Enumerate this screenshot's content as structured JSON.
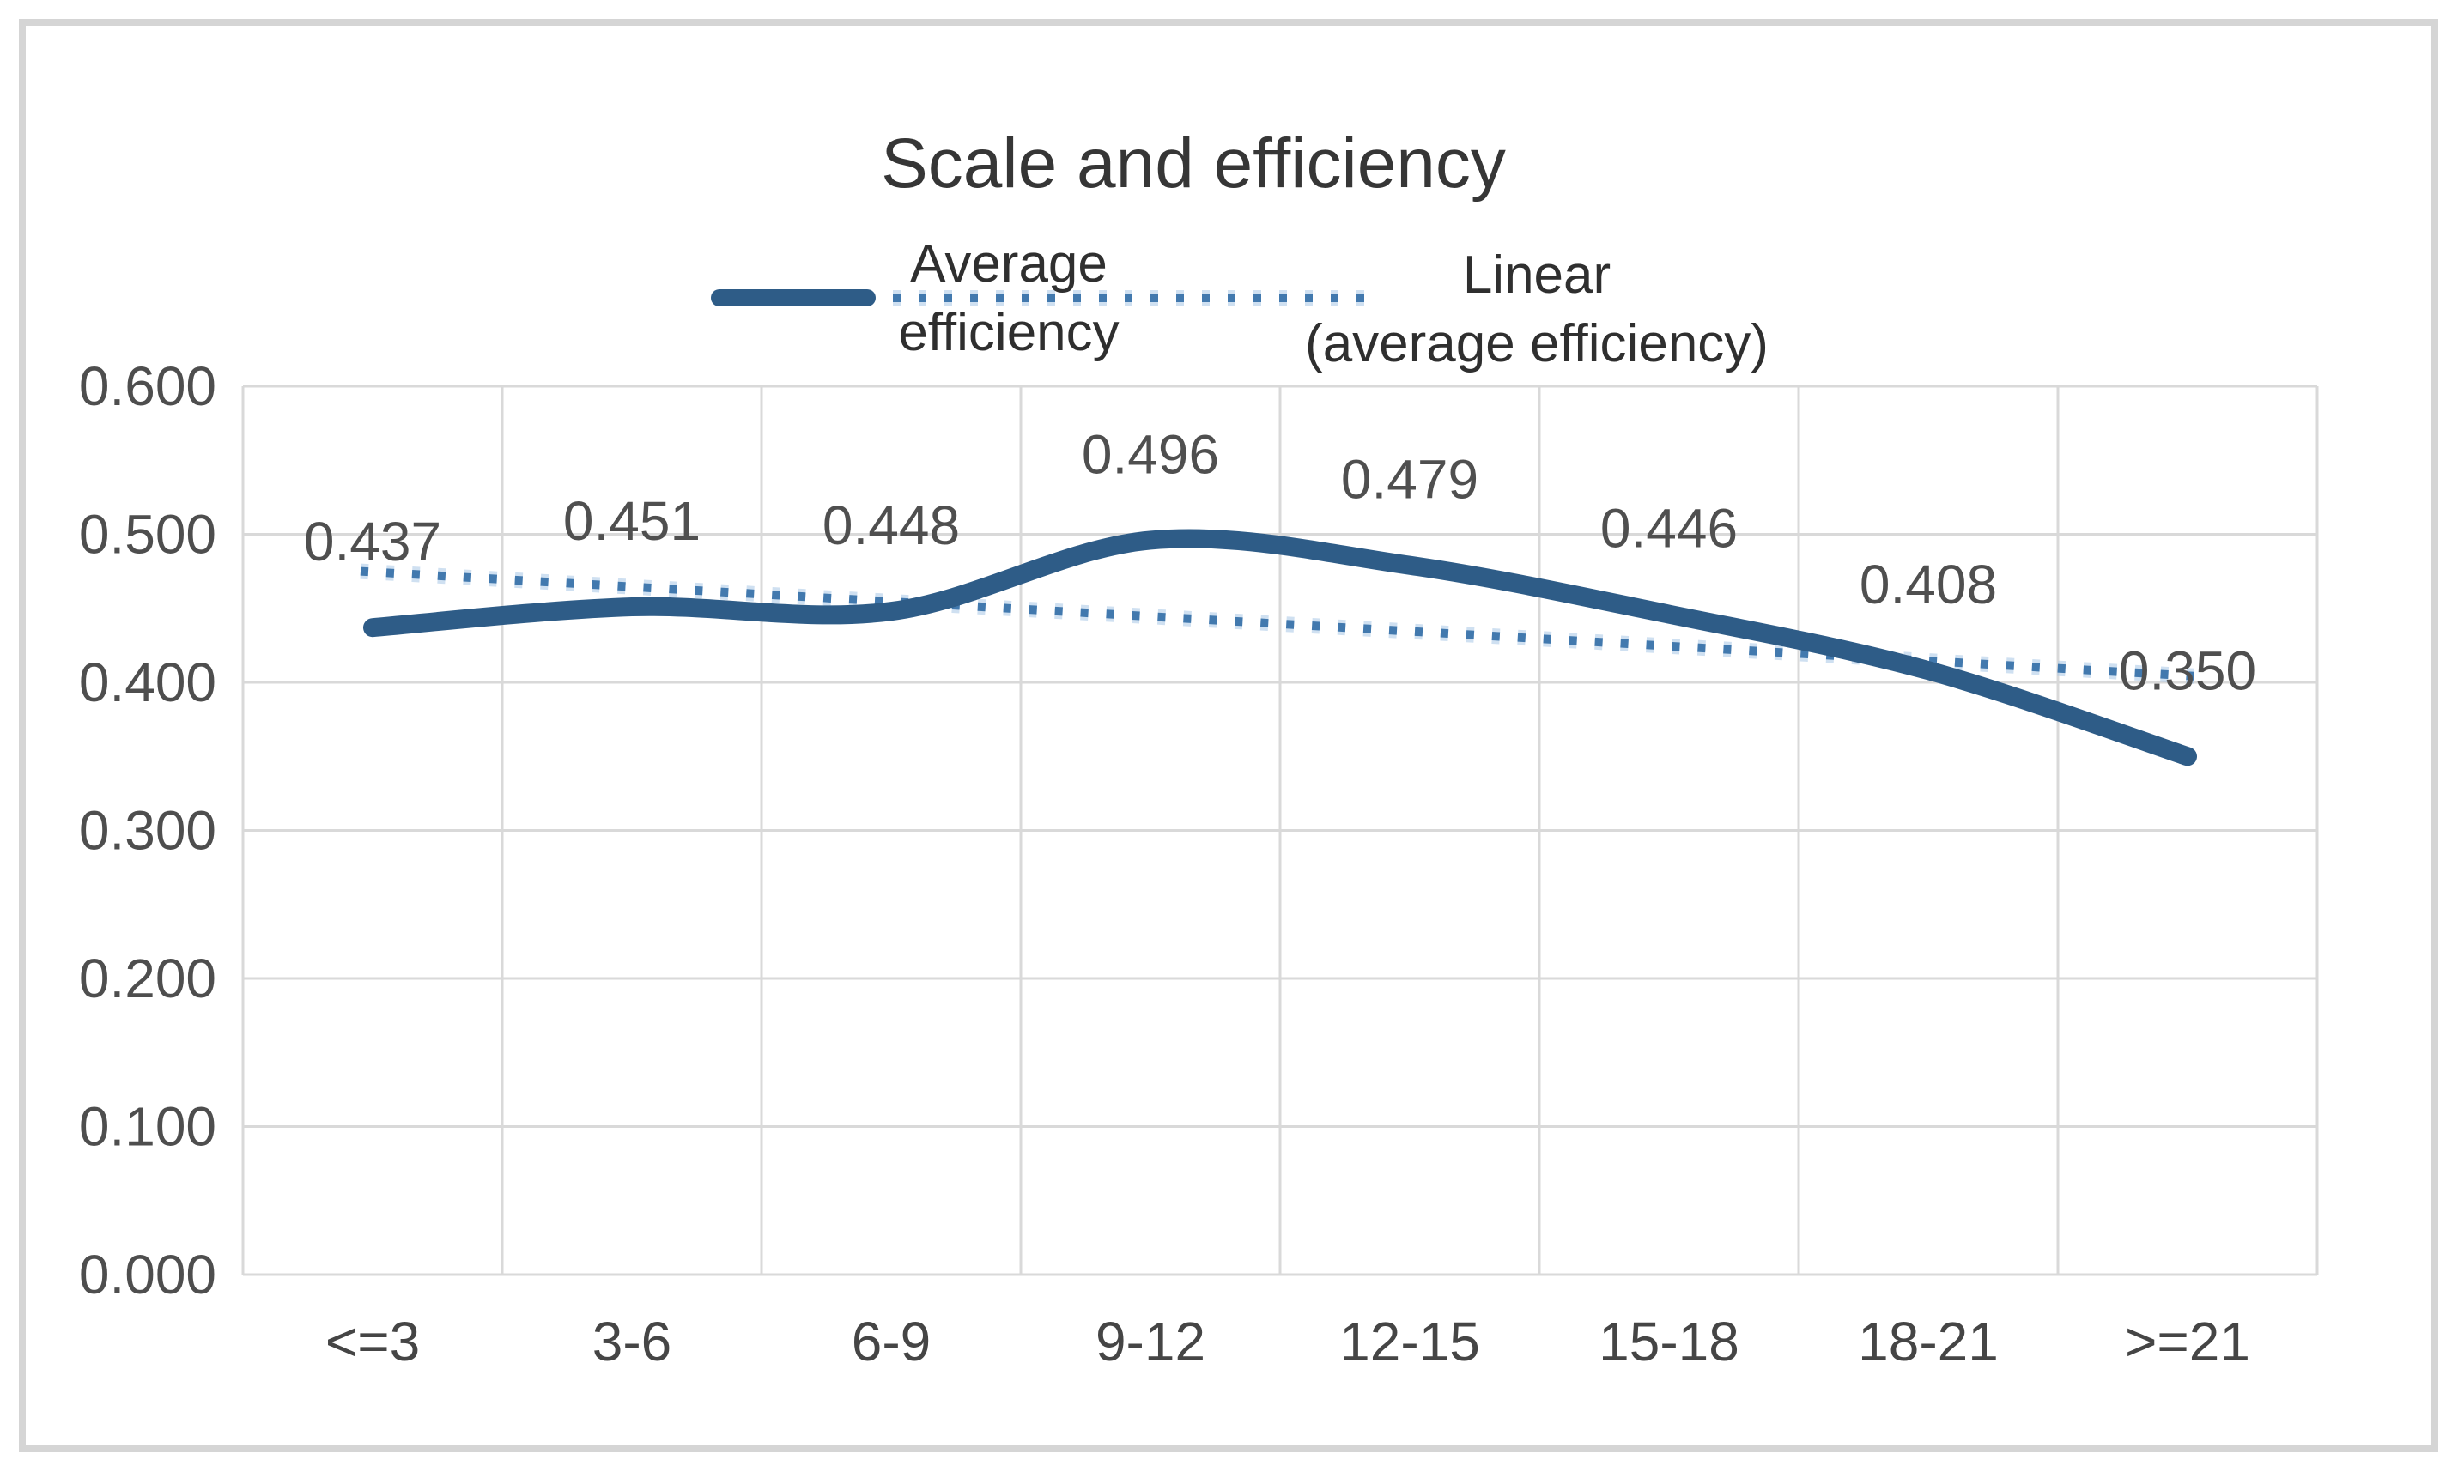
{
  "figure": {
    "background_color": "#ffffff",
    "frame_color": "#d5d5d5",
    "gridline_color": "#d9d9d9"
  },
  "chart_data": {
    "type": "line",
    "title": "Scale and efficiency",
    "xlabel": "",
    "ylabel": "",
    "categories": [
      "<=3",
      "3-6",
      "6-9",
      "9-12",
      "12-15",
      "15-18",
      "18-21",
      ">=21"
    ],
    "series": [
      {
        "name": "Average efficiency",
        "style": "solid-smooth",
        "color": "#2e5c87",
        "values": [
          0.437,
          0.451,
          0.448,
          0.496,
          0.479,
          0.446,
          0.408,
          0.35
        ],
        "data_labels": [
          "0.437",
          "0.451",
          "0.448",
          "0.496",
          "0.479",
          "0.446",
          "0.408",
          "0.350"
        ]
      },
      {
        "name": "Linear (average efficiency)",
        "style": "dotted-trendline",
        "color": "#4279ae",
        "halo_color": "#a9c8e6",
        "start_value": 0.475,
        "end_value": 0.404
      }
    ],
    "y_axis": {
      "min": 0.0,
      "max": 0.6,
      "step": 0.1,
      "tick_labels": [
        "0.600",
        "0.500",
        "0.400",
        "0.300",
        "0.200",
        "0.100",
        "0.000"
      ]
    },
    "x_axis": {
      "tick_labels": [
        "<=3",
        "3-6",
        "6-9",
        "9-12",
        "12-15",
        "15-18",
        "18-21",
        ">=21"
      ]
    },
    "grid": true,
    "legend": {
      "position": "top",
      "items": [
        {
          "label_lines": [
            "Average",
            "efficiency"
          ]
        },
        {
          "label_lines": [
            "Linear",
            "(average efficiency)"
          ]
        }
      ]
    },
    "ylim": [
      0.0,
      0.6
    ]
  }
}
